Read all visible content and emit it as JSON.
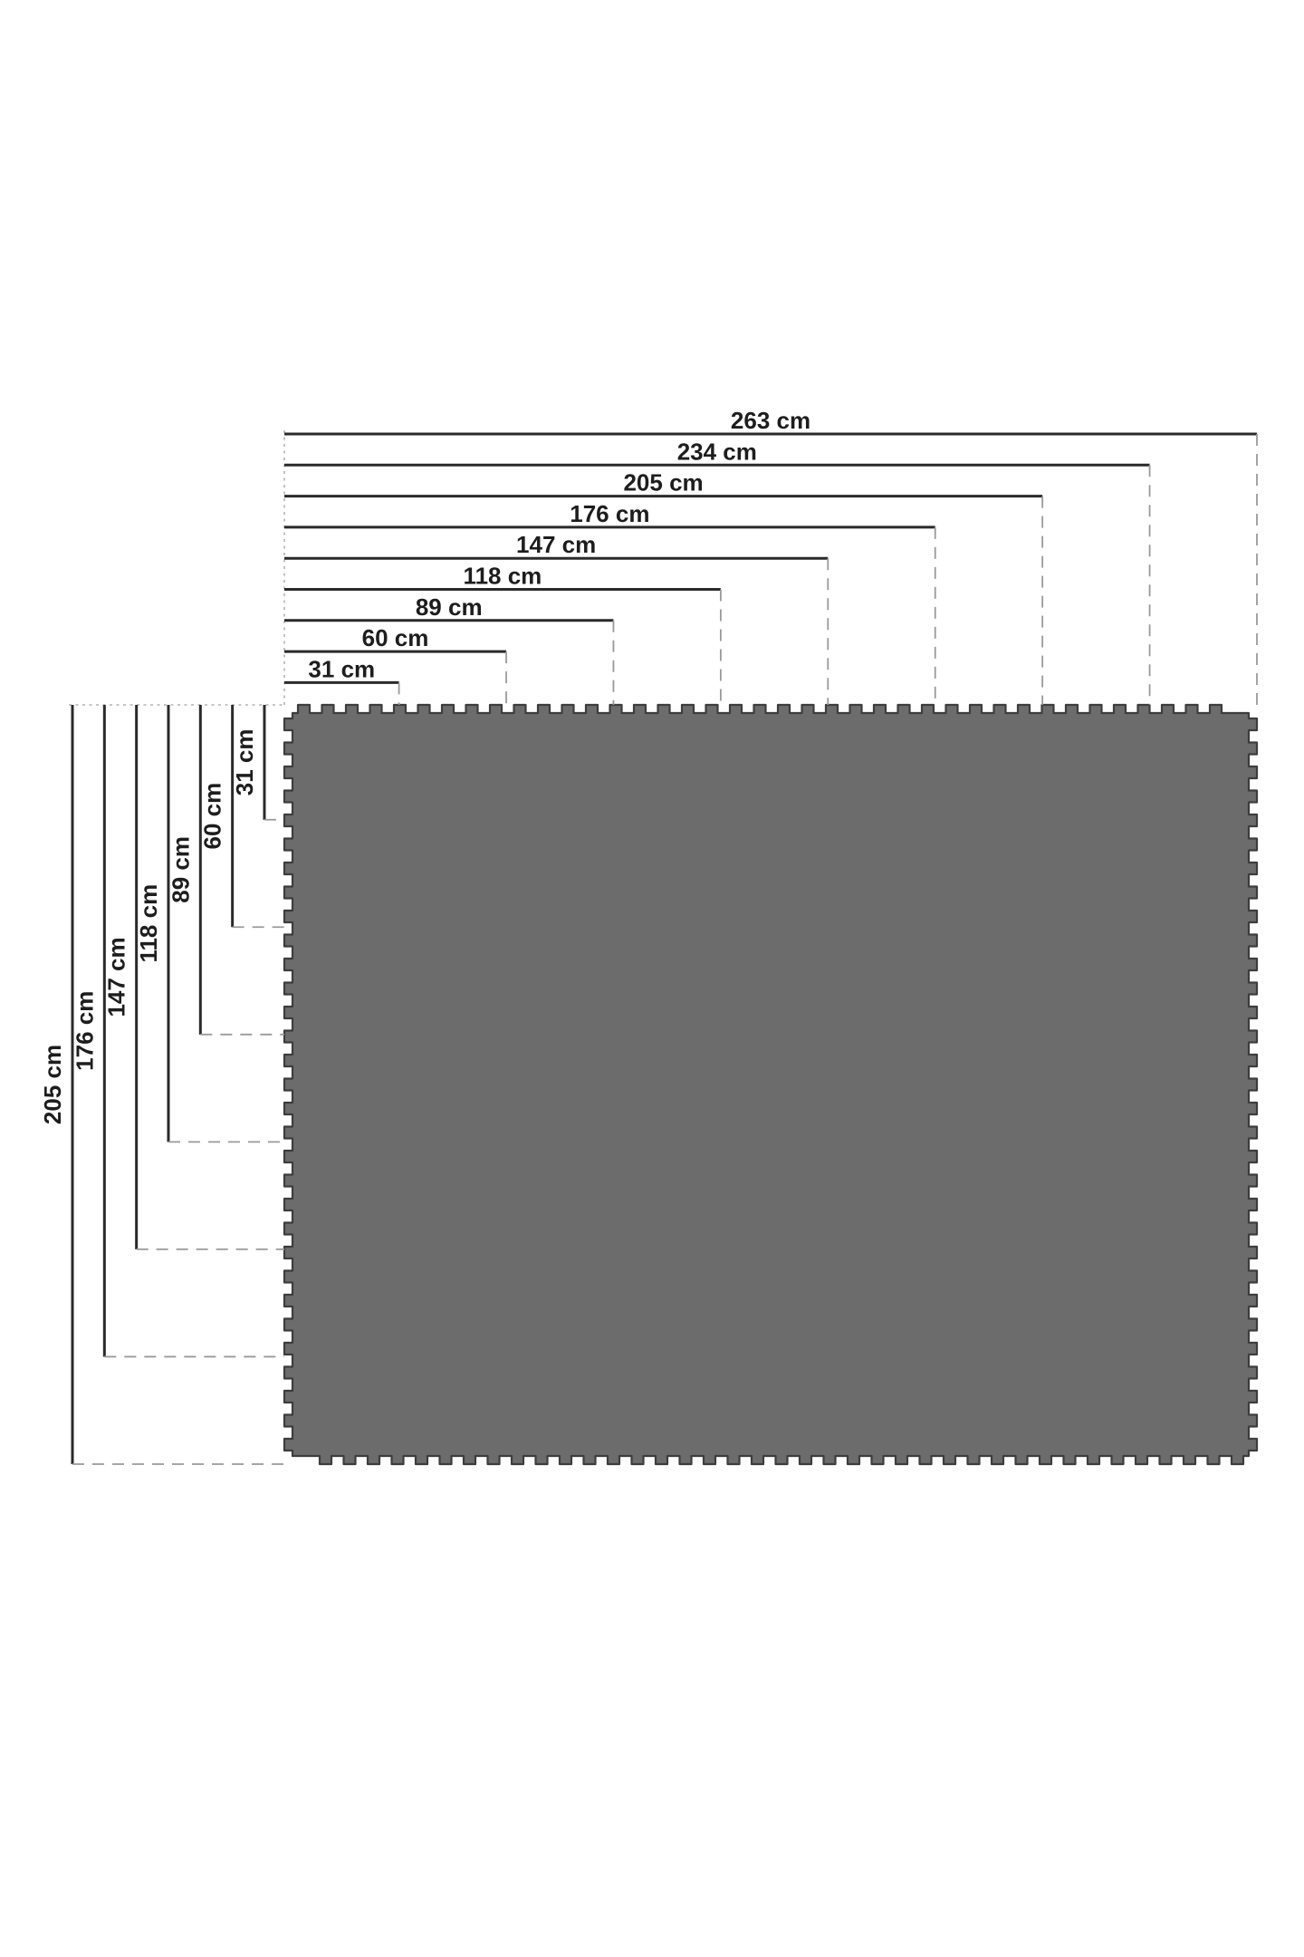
{
  "diagram": {
    "title": "interlocking-foam-star-play-mat-dimension-diagram",
    "unit": "cm",
    "top_dimensions": [
      {
        "label": "263 cm",
        "value": 263
      },
      {
        "label": "234 cm",
        "value": 234
      },
      {
        "label": "205 cm",
        "value": 205
      },
      {
        "label": "176 cm",
        "value": 176
      },
      {
        "label": "147 cm",
        "value": 147
      },
      {
        "label": "118 cm",
        "value": 118
      },
      {
        "label": "89 cm",
        "value": 89
      },
      {
        "label": "60 cm",
        "value": 60
      },
      {
        "label": "31 cm",
        "value": 31
      }
    ],
    "left_dimensions": [
      {
        "label": "205 cm",
        "value": 205
      },
      {
        "label": "176 cm",
        "value": 176
      },
      {
        "label": "147 cm",
        "value": 147
      },
      {
        "label": "118 cm",
        "value": 118
      },
      {
        "label": "89 cm",
        "value": 89
      },
      {
        "label": "60 cm",
        "value": 60
      },
      {
        "label": "31 cm",
        "value": 31
      }
    ],
    "mat": {
      "columns": 9,
      "rows": 7,
      "tile_motif": "five-pointed-star",
      "tile_color": "#6c6c6c",
      "seam_color": "#3d3d3d",
      "star_color": "#ffffff"
    },
    "colors": {
      "background": "#ffffff",
      "dimension_line": "#2a2a2a",
      "dashed_guide": "#9a9a9a",
      "dotted_reference": "#b4b4b4",
      "label_text": "#1d1d1d"
    }
  }
}
